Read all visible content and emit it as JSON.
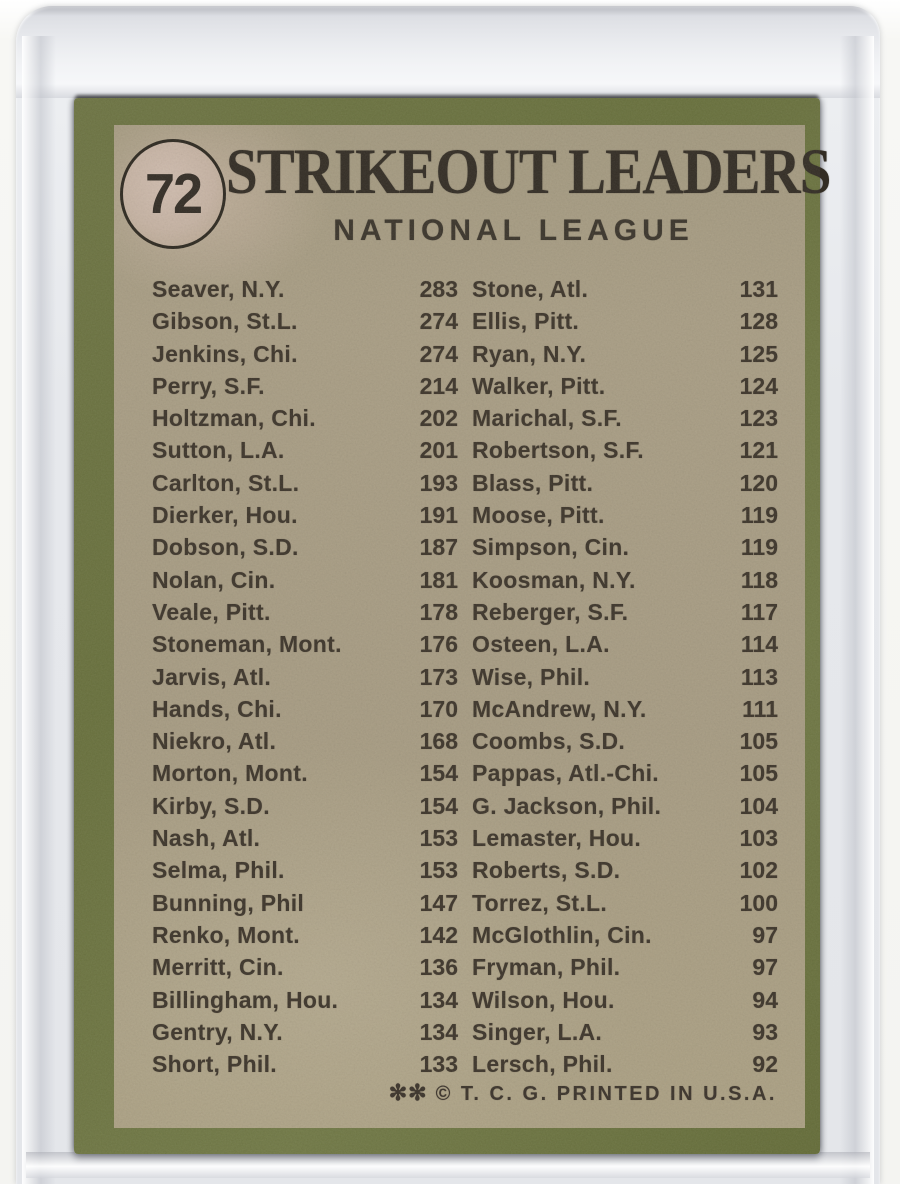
{
  "card": {
    "number": "72",
    "title": "STRIKEOUT LEADERS",
    "subtitle": "NATIONAL LEAGUE",
    "footer_stars": "✻✻",
    "footer_text": "© T. C. G. PRINTED IN U.S.A.",
    "colors": {
      "card_border_green": "#68703c",
      "card_face_tan": "#a69b82",
      "ink": "#3d352a",
      "number_circle_fill": "#c5b2a2",
      "sleeve_gray": "#e9ebee"
    },
    "left_column": [
      {
        "name": "Seaver, N.Y.",
        "value": "283"
      },
      {
        "name": "Gibson, St.L.",
        "value": "274"
      },
      {
        "name": "Jenkins, Chi.",
        "value": "274"
      },
      {
        "name": "Perry, S.F.",
        "value": "214"
      },
      {
        "name": "Holtzman, Chi.",
        "value": "202"
      },
      {
        "name": "Sutton, L.A.",
        "value": "201"
      },
      {
        "name": "Carlton, St.L.",
        "value": "193"
      },
      {
        "name": "Dierker, Hou.",
        "value": "191"
      },
      {
        "name": "Dobson, S.D.",
        "value": "187"
      },
      {
        "name": "Nolan, Cin.",
        "value": "181"
      },
      {
        "name": "Veale, Pitt.",
        "value": "178"
      },
      {
        "name": "Stoneman, Mont.",
        "value": "176"
      },
      {
        "name": "Jarvis, Atl.",
        "value": "173"
      },
      {
        "name": "Hands, Chi.",
        "value": "170"
      },
      {
        "name": "Niekro, Atl.",
        "value": "168"
      },
      {
        "name": "Morton, Mont.",
        "value": "154"
      },
      {
        "name": "Kirby, S.D.",
        "value": "154"
      },
      {
        "name": "Nash, Atl.",
        "value": "153"
      },
      {
        "name": "Selma, Phil.",
        "value": "153"
      },
      {
        "name": "Bunning, Phil",
        "value": "147"
      },
      {
        "name": "Renko, Mont.",
        "value": "142"
      },
      {
        "name": "Merritt, Cin.",
        "value": "136"
      },
      {
        "name": "Billingham, Hou.",
        "value": "134"
      },
      {
        "name": "Gentry, N.Y.",
        "value": "134"
      },
      {
        "name": "Short, Phil.",
        "value": "133"
      }
    ],
    "right_column": [
      {
        "name": "Stone, Atl.",
        "value": "131"
      },
      {
        "name": "Ellis, Pitt.",
        "value": "128"
      },
      {
        "name": "Ryan, N.Y.",
        "value": "125"
      },
      {
        "name": "Walker, Pitt.",
        "value": "124"
      },
      {
        "name": "Marichal, S.F.",
        "value": "123"
      },
      {
        "name": "Robertson, S.F.",
        "value": "121"
      },
      {
        "name": "Blass, Pitt.",
        "value": "120"
      },
      {
        "name": "Moose, Pitt.",
        "value": "119"
      },
      {
        "name": "Simpson, Cin.",
        "value": "119"
      },
      {
        "name": "Koosman, N.Y.",
        "value": "118"
      },
      {
        "name": "Reberger, S.F.",
        "value": "117"
      },
      {
        "name": "Osteen, L.A.",
        "value": "114"
      },
      {
        "name": "Wise, Phil.",
        "value": "113"
      },
      {
        "name": "McAndrew, N.Y.",
        "value": "111"
      },
      {
        "name": "Coombs, S.D.",
        "value": "105"
      },
      {
        "name": "Pappas, Atl.-Chi.",
        "value": "105"
      },
      {
        "name": "G. Jackson, Phil.",
        "value": "104"
      },
      {
        "name": "Lemaster, Hou.",
        "value": "103"
      },
      {
        "name": "Roberts, S.D.",
        "value": "102"
      },
      {
        "name": "Torrez, St.L.",
        "value": "100"
      },
      {
        "name": "McGlothlin, Cin.",
        "value": "97"
      },
      {
        "name": "Fryman, Phil.",
        "value": "97"
      },
      {
        "name": "Wilson, Hou.",
        "value": "94"
      },
      {
        "name": "Singer, L.A.",
        "value": "93"
      },
      {
        "name": "Lersch, Phil.",
        "value": "92"
      }
    ]
  }
}
